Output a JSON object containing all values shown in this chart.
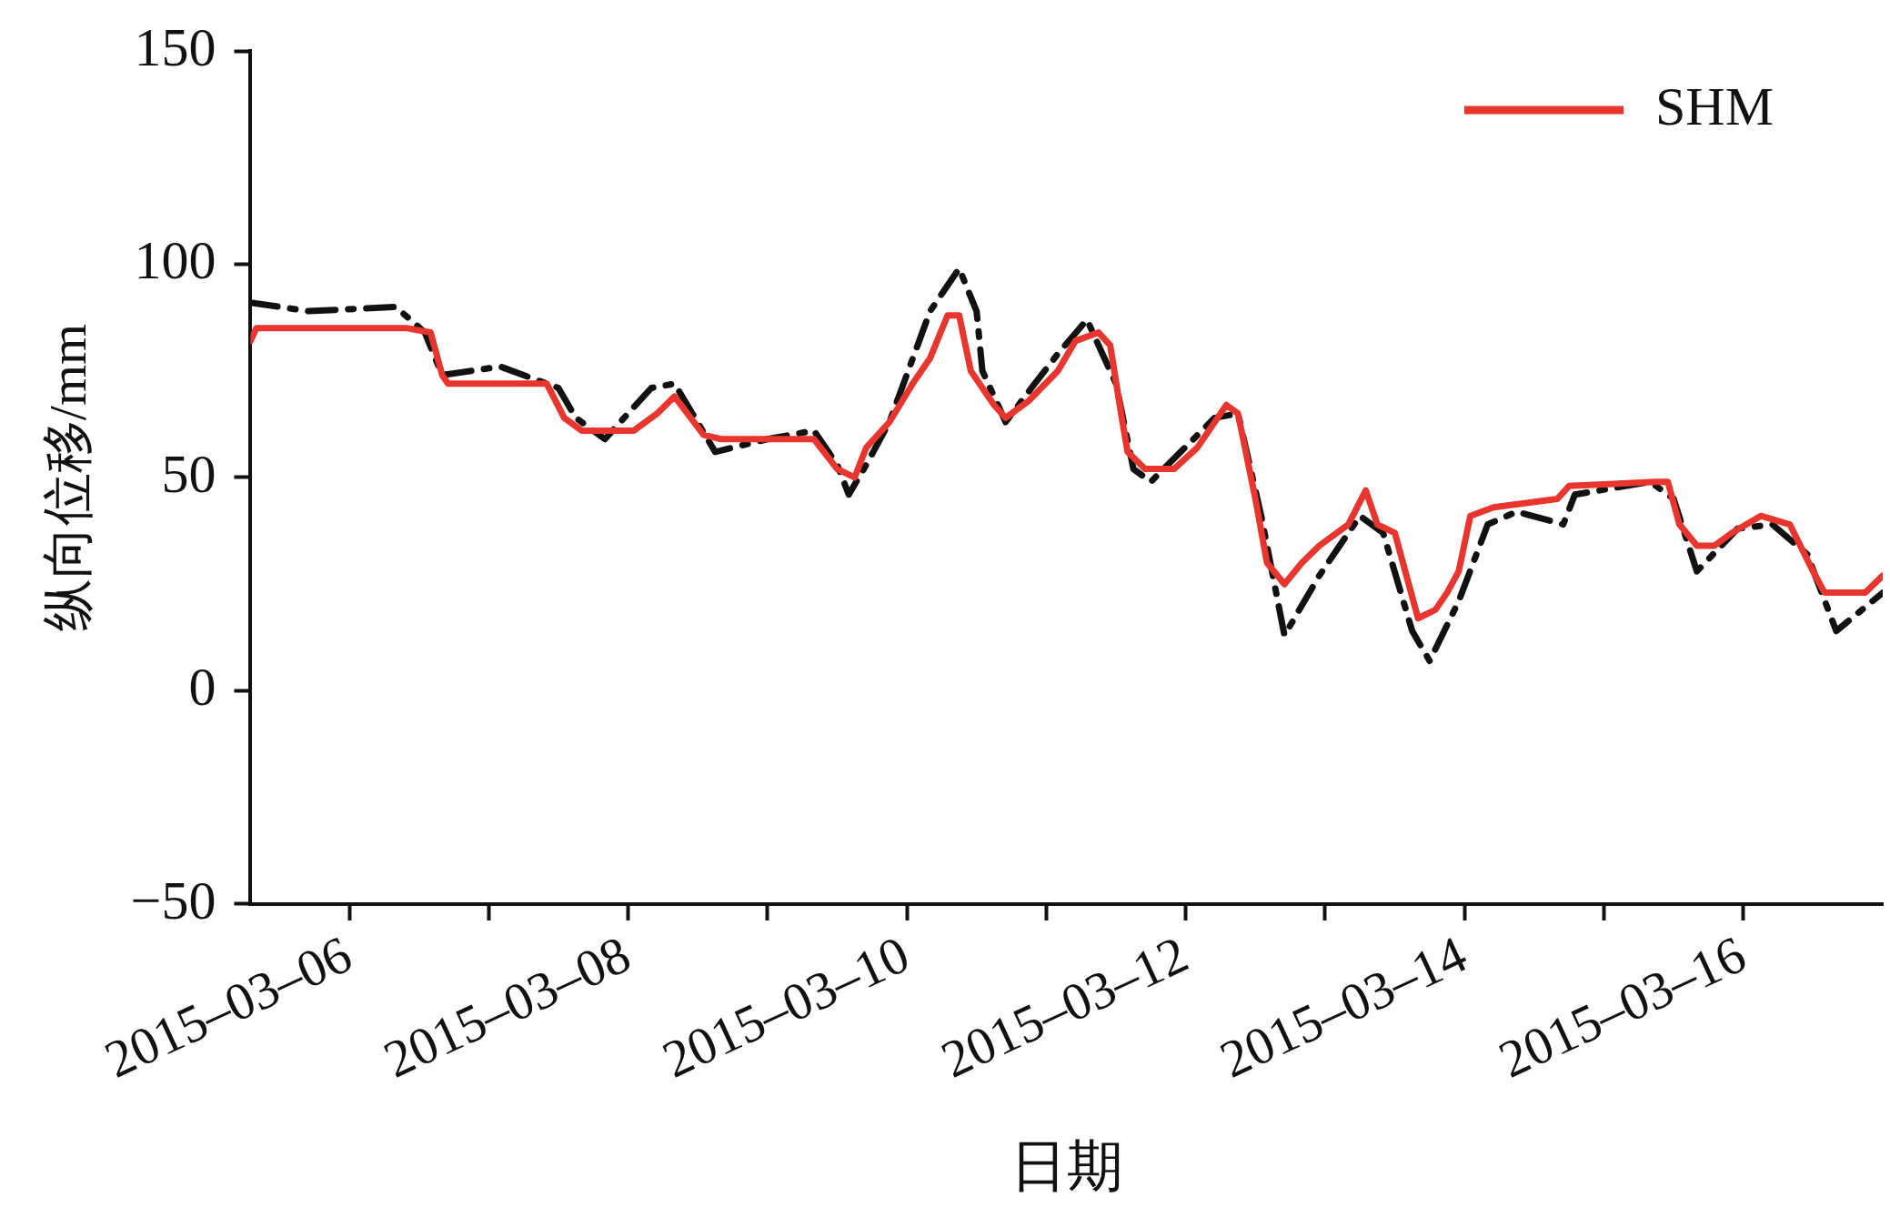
{
  "chart_data": {
    "type": "line",
    "xlabel": "日期",
    "ylabel": "纵向位移/mm",
    "xlim": [
      "2015-03-05T07:00",
      "2015-03-17T00:00"
    ],
    "xticks": [
      {
        "value": "2015-03-06",
        "label": "2015–03–06"
      },
      {
        "value": "2015-03-07",
        "label": null
      },
      {
        "value": "2015-03-08",
        "label": "2015–03–08"
      },
      {
        "value": "2015-03-09",
        "label": null
      },
      {
        "value": "2015-03-10",
        "label": "2015–03–10"
      },
      {
        "value": "2015-03-11",
        "label": null
      },
      {
        "value": "2015-03-12",
        "label": "2015–03–12"
      },
      {
        "value": "2015-03-13",
        "label": null
      },
      {
        "value": "2015-03-14",
        "label": "2015–03–14"
      },
      {
        "value": "2015-03-15",
        "label": null
      },
      {
        "value": "2015-03-16",
        "label": "2015–03–16"
      }
    ],
    "ylim": [
      -50,
      150
    ],
    "yticks": [
      {
        "value": -50,
        "label": "−50"
      },
      0,
      50,
      100,
      150
    ],
    "grid": false,
    "legend": "top right",
    "marker": "none",
    "series": [
      {
        "name": "SHM",
        "color": "#e8352e",
        "line_style": "solid",
        "x": [
          "2015-03-05T07:00",
          "2015-03-05T08:00",
          "2015-03-06T10:00",
          "2015-03-06T14:00",
          "2015-03-06T16:00",
          "2015-03-06T17:00",
          "2015-03-07T10:00",
          "2015-03-07T13:00",
          "2015-03-07T16:00",
          "2015-03-08T01:00",
          "2015-03-08T05:00",
          "2015-03-08T08:00",
          "2015-03-08T13:00",
          "2015-03-08T16:00",
          "2015-03-09T08:00",
          "2015-03-09T12:00",
          "2015-03-09T15:00",
          "2015-03-09T17:00",
          "2015-03-09T21:00",
          "2015-03-10T01:00",
          "2015-03-10T04:00",
          "2015-03-10T07:00",
          "2015-03-10T09:00",
          "2015-03-10T11:00",
          "2015-03-10T15:00",
          "2015-03-10T17:00",
          "2015-03-10T21:00",
          "2015-03-11T02:00",
          "2015-03-11T05:00",
          "2015-03-11T09:00",
          "2015-03-11T11:00",
          "2015-03-11T13:00",
          "2015-03-11T14:00",
          "2015-03-11T17:00",
          "2015-03-11T22:00",
          "2015-03-12T02:00",
          "2015-03-12T07:00",
          "2015-03-12T09:00",
          "2015-03-12T12:00",
          "2015-03-12T14:00",
          "2015-03-12T17:00",
          "2015-03-12T20:00",
          "2015-03-12T23:00",
          "2015-03-13T04:00",
          "2015-03-13T07:00",
          "2015-03-13T09:00",
          "2015-03-13T12:00",
          "2015-03-13T16:00",
          "2015-03-13T19:00",
          "2015-03-13T21:00",
          "2015-03-13T23:00",
          "2015-03-14T01:00",
          "2015-03-14T05:00",
          "2015-03-14T16:00",
          "2015-03-14T18:00",
          "2015-03-15T09:00",
          "2015-03-15T11:00",
          "2015-03-15T13:00",
          "2015-03-15T16:00",
          "2015-03-15T19:00",
          "2015-03-15T22:00",
          "2015-03-16T03:00",
          "2015-03-16T08:00",
          "2015-03-16T12:00",
          "2015-03-16T14:00",
          "2015-03-16T21:00",
          "2015-03-17T00:00"
        ],
        "values": [
          82,
          85,
          85,
          84,
          74,
          72,
          72,
          64,
          61,
          61,
          65,
          69,
          60,
          59,
          59,
          52,
          50,
          57,
          63,
          72,
          78,
          88,
          88,
          75,
          67,
          64,
          68,
          75,
          82,
          84,
          81,
          64,
          56,
          52,
          52,
          57,
          67,
          65,
          45,
          30,
          25,
          30,
          34,
          39,
          47,
          39,
          37,
          17,
          19,
          23,
          28,
          41,
          43,
          45,
          48,
          49,
          49,
          39,
          34,
          34,
          37,
          41,
          39,
          28,
          23,
          23,
          27
        ]
      },
      {
        "color": "#111111",
        "line_style": "dashed",
        "x": [
          "2015-03-05T07:00",
          "2015-03-05T17:00",
          "2015-03-06T08:00",
          "2015-03-06T13:00",
          "2015-03-06T16:00",
          "2015-03-07T02:00",
          "2015-03-07T12:00",
          "2015-03-07T15:00",
          "2015-03-07T20:00",
          "2015-03-08T04:00",
          "2015-03-08T08:00",
          "2015-03-08T15:00",
          "2015-03-09T00:00",
          "2015-03-09T08:00",
          "2015-03-09T12:00",
          "2015-03-09T14:00",
          "2015-03-09T17:00",
          "2015-03-09T21:00",
          "2015-03-10T04:00",
          "2015-03-10T09:00",
          "2015-03-10T12:00",
          "2015-03-10T13:00",
          "2015-03-10T17:00",
          "2015-03-10T22:00",
          "2015-03-11T02:00",
          "2015-03-11T07:00",
          "2015-03-11T12:00",
          "2015-03-11T15:00",
          "2015-03-11T18:00",
          "2015-03-12T05:00",
          "2015-03-12T09:00",
          "2015-03-12T13:00",
          "2015-03-12T17:00",
          "2015-03-12T23:00",
          "2015-03-13T06:00",
          "2015-03-13T10:00",
          "2015-03-13T15:00",
          "2015-03-13T18:00",
          "2015-03-13T23:00",
          "2015-03-14T04:00",
          "2015-03-14T09:00",
          "2015-03-14T17:00",
          "2015-03-14T19:00",
          "2015-03-15T08:00",
          "2015-03-15T12:00",
          "2015-03-15T16:00",
          "2015-03-15T23:00",
          "2015-03-16T05:00",
          "2015-03-16T11:00",
          "2015-03-16T16:00",
          "2015-03-17T00:00"
        ],
        "values": [
          91,
          89,
          90,
          84,
          74,
          76,
          71,
          64,
          59,
          71,
          72,
          56,
          59,
          61,
          53,
          46,
          53,
          63,
          89,
          99,
          89,
          75,
          63,
          72,
          79,
          87,
          72,
          52,
          49,
          64,
          65,
          41,
          13,
          27,
          41,
          37,
          14,
          7,
          21,
          39,
          42,
          39,
          46,
          49,
          45,
          28,
          38,
          39,
          32,
          14,
          23
        ]
      }
    ]
  }
}
